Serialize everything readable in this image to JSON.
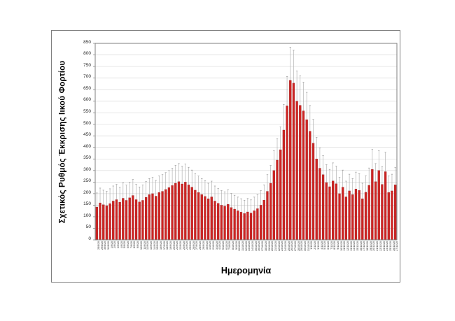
{
  "chart_data": {
    "type": "bar",
    "title": "",
    "xlabel": "Ημερομηνία",
    "ylabel": "Σχετικός Ρυθμός Έκκρισης Ιικού Φορτίου",
    "ylim": [
      0,
      850
    ],
    "ytick_step": 50,
    "grid": true,
    "legend": "none",
    "bar_color": "#cf2423",
    "bar_edge_color": "#8e1414",
    "error_color": "#a6a6a6",
    "gridline_color": "#d9d9d9",
    "axis_border_color": "#7f7f7f",
    "categories": [
      "28/8/20",
      "29/8/20",
      "30/8/20",
      "31/8/20",
      "1/9/20",
      "2/9/20",
      "3/9/20",
      "4/9/20",
      "5/9/20",
      "6/9/20",
      "7/9/20",
      "8/9/20",
      "9/9/20",
      "10/9/20",
      "11/9/20",
      "12/9/20",
      "13/9/20",
      "14/9/20",
      "15/9/20",
      "16/9/20",
      "17/9/20",
      "18/9/20",
      "19/9/20",
      "20/9/20",
      "21/9/20",
      "22/9/20",
      "23/9/20",
      "24/9/20",
      "25/9/20",
      "26/9/20",
      "27/9/20",
      "28/9/20",
      "29/9/20",
      "30/9/20",
      "1/10/20",
      "2/10/20",
      "3/10/20",
      "4/10/20",
      "5/10/20",
      "6/10/20",
      "7/10/20",
      "8/10/20",
      "9/10/20",
      "10/10/20",
      "11/10/20",
      "12/10/20",
      "13/10/20",
      "14/10/20",
      "15/10/20",
      "16/10/20",
      "17/10/20",
      "18/10/20",
      "19/10/20",
      "20/10/20",
      "21/10/20",
      "22/10/20",
      "23/10/20",
      "24/10/20",
      "25/10/20",
      "26/10/20",
      "27/10/20",
      "28/10/20",
      "29/10/20",
      "30/10/20",
      "31/10/20",
      "1/11/20",
      "2/11/20",
      "3/11/20",
      "4/11/20",
      "5/11/20",
      "6/11/20",
      "7/11/20",
      "8/11/20",
      "9/11/20",
      "10/11/20",
      "11/11/20",
      "12/11/20",
      "13/11/20",
      "14/11/20",
      "15/11/20",
      "16/11/20",
      "17/11/20",
      "18/11/20",
      "19/11/20",
      "20/11/20",
      "21/11/20",
      "22/11/20",
      "23/11/20",
      "24/11/20",
      "25/11/20",
      "26/11/20",
      "27/11/20"
    ],
    "values": [
      142,
      160,
      152,
      148,
      157,
      168,
      174,
      163,
      180,
      171,
      182,
      192,
      174,
      164,
      171,
      184,
      196,
      200,
      189,
      205,
      210,
      218,
      226,
      235,
      245,
      252,
      242,
      250,
      238,
      228,
      215,
      205,
      196,
      188,
      178,
      186,
      168,
      158,
      150,
      146,
      154,
      140,
      133,
      126,
      120,
      114,
      121,
      116,
      126,
      135,
      150,
      172,
      210,
      245,
      300,
      345,
      390,
      475,
      580,
      690,
      678,
      600,
      582,
      558,
      520,
      470,
      418,
      350,
      310,
      282,
      248,
      230,
      255,
      243,
      200,
      228,
      186,
      212,
      196,
      220,
      214,
      178,
      206,
      236,
      305,
      252,
      300,
      240,
      295,
      205,
      212,
      238
    ],
    "errors": [
      61,
      64,
      63,
      62,
      64,
      65,
      66,
      64,
      67,
      66,
      67,
      69,
      66,
      65,
      66,
      68,
      69,
      70,
      68,
      71,
      72,
      73,
      74,
      75,
      77,
      78,
      76,
      78,
      76,
      74,
      72,
      71,
      69,
      68,
      67,
      68,
      65,
      64,
      63,
      62,
      63,
      61,
      60,
      59,
      58,
      57,
      58,
      57,
      59,
      60,
      63,
      66,
      72,
      77,
      85,
      92,
      99,
      111,
      127,
      144,
      142,
      130,
      127,
      124,
      118,
      111,
      103,
      93,
      87,
      82,
      77,
      75,
      78,
      76,
      70,
      74,
      68,
      72,
      69,
      73,
      72,
      67,
      71,
      75,
      86,
      78,
      85,
      76,
      84,
      71,
      72,
      76
    ]
  }
}
